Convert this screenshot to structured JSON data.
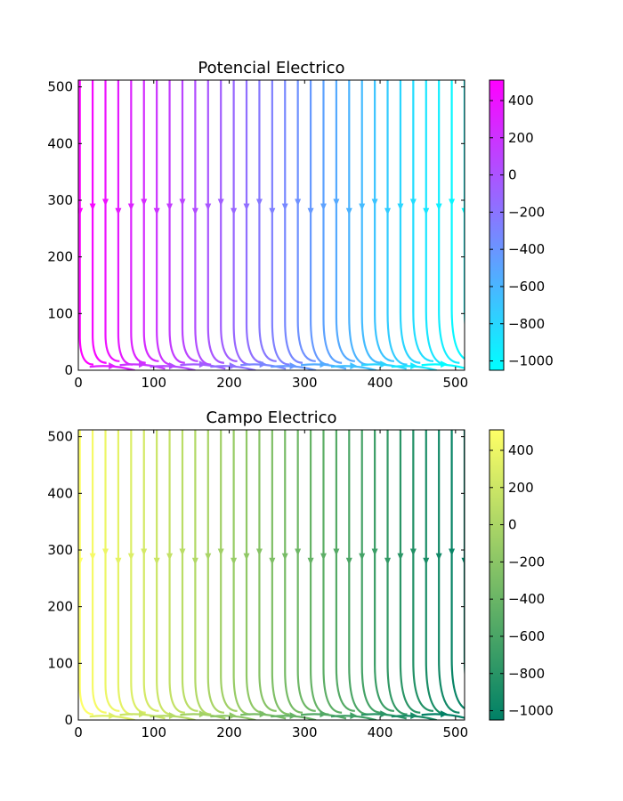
{
  "chart_data": [
    {
      "type": "streamplot",
      "title": "Potencial Electrico",
      "colormap": "cool",
      "colormap_stops": [
        "#00ffff",
        "#ff00ff"
      ],
      "xlim": [
        0,
        512
      ],
      "ylim": [
        0,
        512
      ],
      "xticks": [
        "0",
        "100",
        "200",
        "300",
        "400",
        "500"
      ],
      "yticks": [
        "0",
        "100",
        "200",
        "300",
        "400",
        "500"
      ],
      "colorbar": {
        "range": [
          -1050,
          510
        ],
        "ticks": [
          "400",
          "200",
          "0",
          "−200",
          "−400",
          "−600",
          "−800",
          "−1000"
        ]
      },
      "streamlines": {
        "start_x": 0,
        "end_x": 512,
        "spacing": 17,
        "arrow_y": 280,
        "bend_y": 10
      }
    },
    {
      "type": "streamplot",
      "title": "Campo Electrico",
      "colormap": "summer",
      "colormap_stops": [
        "#008066",
        "#ffff66"
      ],
      "xlim": [
        0,
        512
      ],
      "ylim": [
        0,
        512
      ],
      "xticks": [
        "0",
        "100",
        "200",
        "300",
        "400",
        "500"
      ],
      "yticks": [
        "0",
        "100",
        "200",
        "300",
        "400",
        "500"
      ],
      "colorbar": {
        "range": [
          -1050,
          510
        ],
        "ticks": [
          "400",
          "200",
          "0",
          "−200",
          "−400",
          "−600",
          "−800",
          "−1000"
        ]
      },
      "streamlines": {
        "start_x": 0,
        "end_x": 512,
        "spacing": 17,
        "arrow_y": 280,
        "bend_y": 10
      }
    }
  ]
}
